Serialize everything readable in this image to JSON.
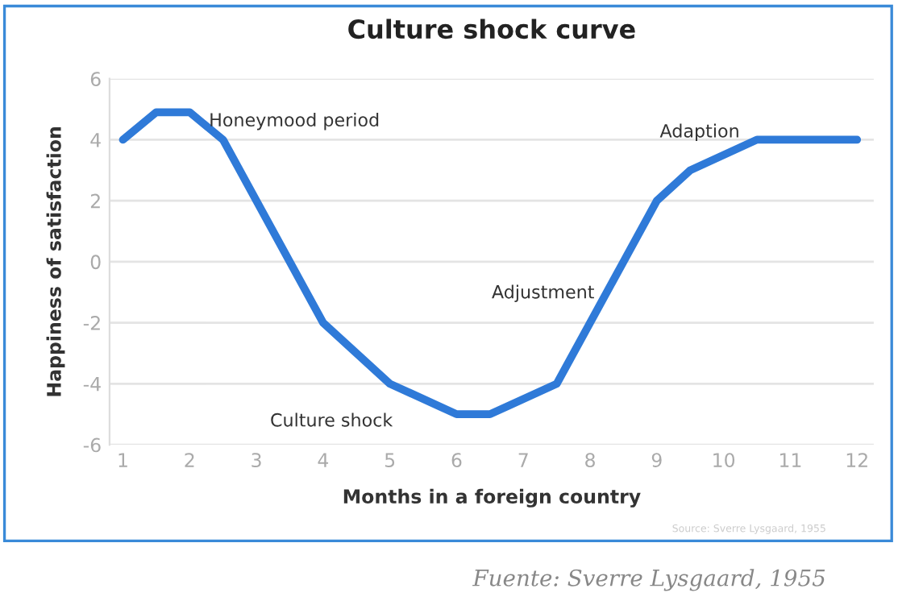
{
  "chart_data": {
    "type": "line",
    "title": "Culture shock curve",
    "xlabel": "Months in a foreign country",
    "ylabel": "Happiness of satisfaction",
    "x": [
      1,
      1.5,
      2,
      2.5,
      4,
      5,
      6,
      6.5,
      7.5,
      9,
      9.5,
      10.5,
      12
    ],
    "series": [
      {
        "color": "#2f7ad8",
        "values": [
          4,
          4.9,
          4.9,
          4,
          -2,
          -4,
          -5,
          -5,
          -4,
          2,
          3,
          4,
          4
        ]
      }
    ],
    "xlim": [
      0.8,
      12.25
    ],
    "xticks": [
      1,
      2,
      3,
      4,
      5,
      6,
      7,
      8,
      9,
      10,
      11,
      12
    ],
    "ylim": [
      -6,
      6
    ],
    "yticks": [
      -6,
      -4,
      -2,
      0,
      2,
      4,
      6
    ],
    "grid": "y",
    "marker": "none",
    "line_style": "solid",
    "annotations": [
      "Honeymood period",
      "Culture shock",
      "Adjustment",
      "Adaption",
      "Source: Sverre Lysgaard, 1955",
      "Fuente: Sverre Lysgaard, 1955"
    ]
  }
}
